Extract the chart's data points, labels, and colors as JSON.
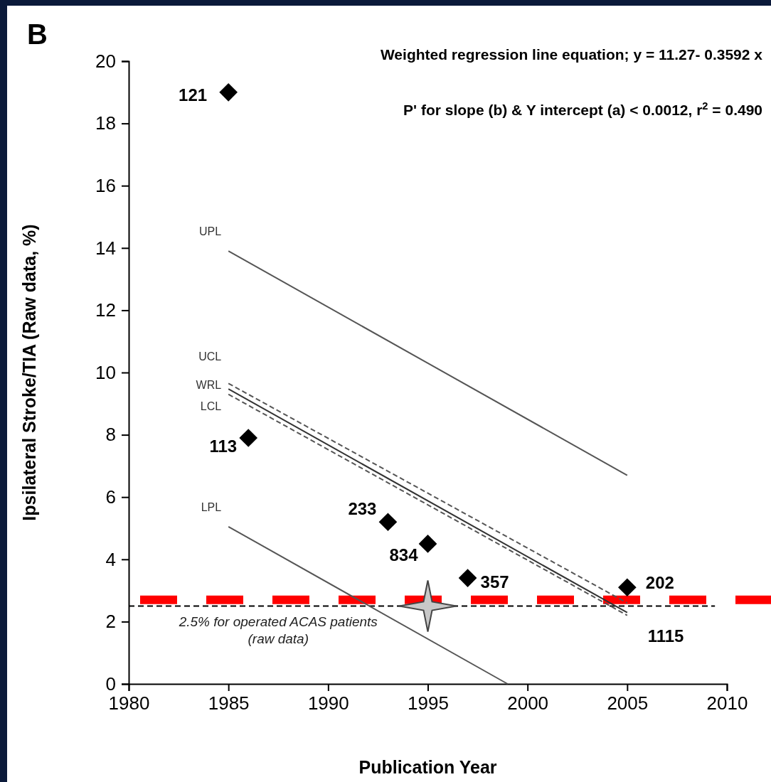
{
  "chart_data": {
    "type": "scatter",
    "title": "B",
    "xlabel": "Publication Year",
    "ylabel": "Ipsilateral Stroke/TIA (Raw data, %)",
    "xlim": [
      1980,
      2010
    ],
    "xticks": [
      1980,
      1985,
      1990,
      1995,
      2000,
      2005,
      2010
    ],
    "ylim": [
      0,
      20
    ],
    "yticks": [
      0,
      2,
      4,
      6,
      8,
      10,
      12,
      14,
      16,
      18,
      20
    ],
    "grid": false,
    "series": [
      {
        "marker": "diamond",
        "color": "#000000",
        "x": [
          1985,
          1986,
          1993,
          1995,
          1997,
          2005
        ],
        "values": [
          19.0,
          7.9,
          5.2,
          4.5,
          3.4,
          3.1
        ]
      },
      {
        "marker": "star",
        "color": "#c8c8c8",
        "x": [
          1995
        ],
        "values": [
          2.5
        ]
      },
      {
        "type": "line",
        "name": "UPL",
        "color": "#555555",
        "line_style": "solid",
        "x": [
          1985,
          2005
        ],
        "values": [
          13.9,
          6.7
        ]
      },
      {
        "type": "line",
        "name": "UCL",
        "color": "#555555",
        "line_style": "dashed",
        "x": [
          1985,
          2005
        ],
        "values": [
          9.65,
          2.6
        ]
      },
      {
        "type": "line",
        "name": "WRL",
        "color": "#333333",
        "line_style": "solid",
        "x": [
          1985,
          2005
        ],
        "values": [
          9.47,
          2.29
        ]
      },
      {
        "type": "line",
        "name": "LCL",
        "color": "#555555",
        "line_style": "dashed",
        "x": [
          1985,
          2005
        ],
        "values": [
          9.3,
          2.2
        ]
      },
      {
        "type": "line",
        "name": "LPL",
        "color": "#555555",
        "line_style": "solid",
        "x": [
          1985,
          1999
        ],
        "values": [
          5.05,
          0
        ]
      }
    ],
    "ref_lines": [
      {
        "axis": "y",
        "value": 2.5,
        "label": "2.5% for operated ACAS patients\n(raw data)",
        "color": "#000000",
        "line_style": "dashed"
      },
      {
        "axis": "y",
        "value": 2.7,
        "label": null,
        "color": "#ff0000",
        "line_style": "dashed"
      }
    ],
    "annotations": [
      "Weighted regression line equation; y = 11.27- 0.3592 x",
      "P' for slope (b) & Y intercept (a) < 0.0012,  r$^{2}$ = 0.490",
      {
        "text": "121",
        "x": 1985,
        "y": 19.0
      },
      {
        "text": "113",
        "x": 1986,
        "y": 7.9
      },
      {
        "text": "233",
        "x": 1993,
        "y": 5.2
      },
      {
        "text": "834",
        "x": 1995,
        "y": 4.5
      },
      {
        "text": "357",
        "x": 1997,
        "y": 3.4
      },
      {
        "text": "202",
        "x": 2005,
        "y": 3.1
      },
      "1115"
    ]
  }
}
